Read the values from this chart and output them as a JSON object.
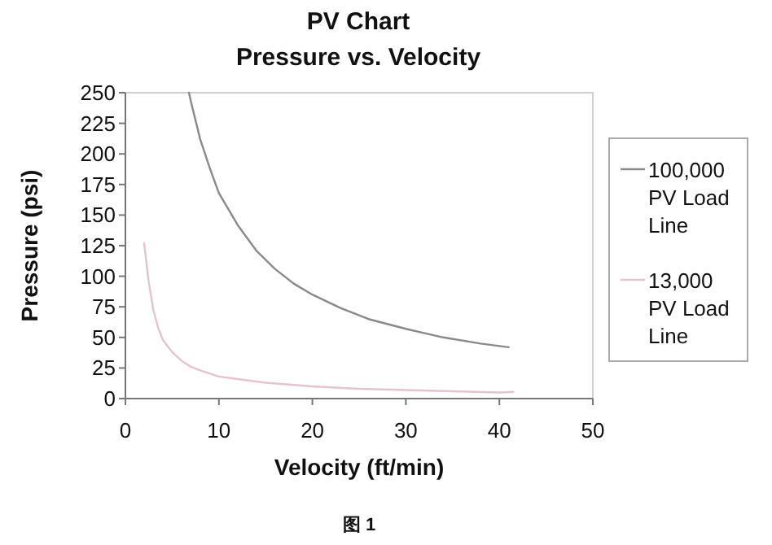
{
  "chart_data": {
    "type": "line",
    "title": "PV Chart",
    "subtitle": "Pressure vs. Velocity",
    "xlabel": "Velocity (ft/min)",
    "ylabel": "Pressure (psi)",
    "xlim": [
      0,
      50
    ],
    "xticks": [
      0,
      10,
      20,
      30,
      40,
      50
    ],
    "ylim": [
      0,
      250
    ],
    "yticks": [
      0,
      25,
      50,
      75,
      100,
      125,
      150,
      175,
      200,
      225,
      250
    ],
    "grid": false,
    "legend": "right",
    "marker": "none",
    "line_style": "solid",
    "series": [
      {
        "name": "100,000 PV Load Line",
        "color": "#8a8a8a",
        "x": [
          6.8,
          7,
          8,
          9,
          10,
          12,
          14,
          16,
          18,
          20,
          23,
          26,
          30,
          34,
          38,
          41
        ],
        "values": [
          250,
          243,
          212,
          189,
          168,
          142,
          121,
          106,
          94,
          85,
          74,
          65,
          57,
          50,
          45,
          42
        ]
      },
      {
        "name": "13,000 PV Load Line",
        "color": "#e6c3d0",
        "x": [
          2,
          2.5,
          3,
          3.5,
          4,
          5,
          6,
          7,
          8,
          10,
          12,
          15,
          20,
          25,
          30,
          35,
          40,
          41.5
        ],
        "values": [
          127,
          95,
          72,
          58,
          48,
          38,
          31,
          26,
          23,
          18,
          16,
          13,
          10,
          8,
          7,
          6,
          5,
          5.5
        ]
      }
    ],
    "annotations": [
      "图 1"
    ]
  }
}
